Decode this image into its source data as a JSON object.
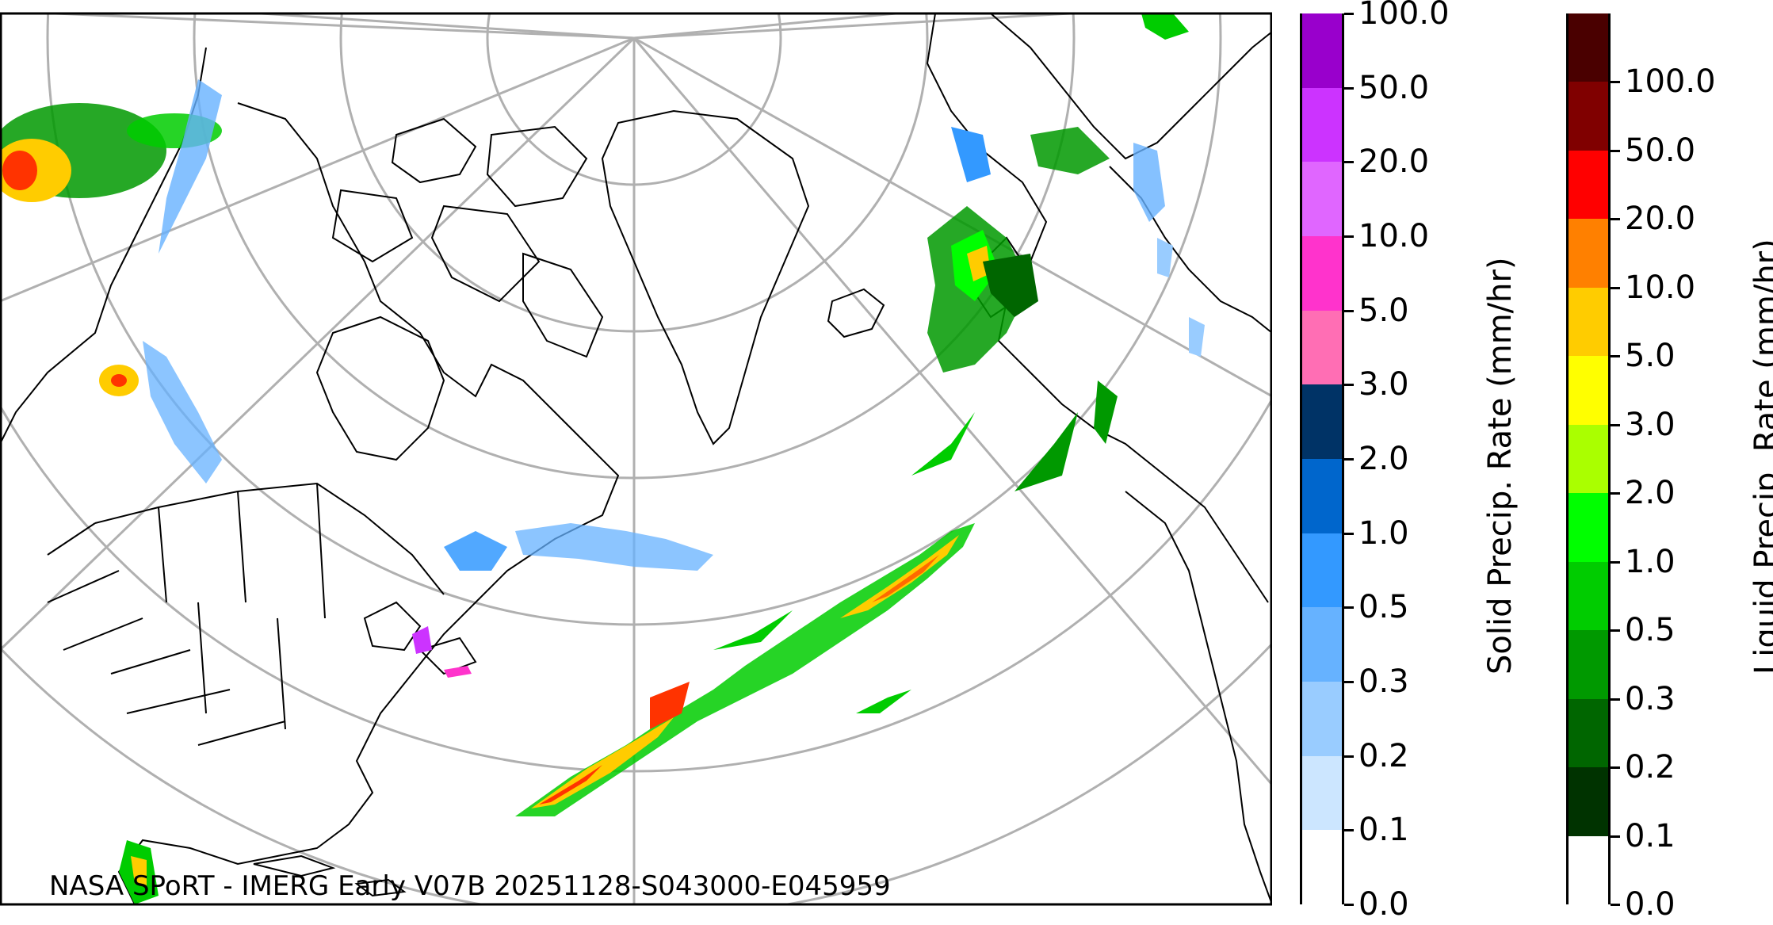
{
  "footer_text": "NASA SPoRT - IMERG Early V07B 20251128-S043000-E045959",
  "colorbars": {
    "solid": {
      "title": "Solid Precip. Rate (mm/hr)",
      "ticks": [
        "0.0",
        "0.1",
        "0.2",
        "0.3",
        "0.5",
        "1.0",
        "2.0",
        "3.0",
        "5.0",
        "10.0",
        "20.0",
        "50.0",
        "100.0"
      ],
      "colors": [
        "#ffffff",
        "#cce6ff",
        "#99ccff",
        "#66b2ff",
        "#3399ff",
        "#0066cc",
        "#003366",
        "#ff6eb4",
        "#ff33cc",
        "#e066ff",
        "#cc33ff",
        "#9900cc"
      ]
    },
    "liquid": {
      "title": "Liquid Precip. Rate (mm/hr)",
      "ticks": [
        "0.0",
        "0.1",
        "0.2",
        "0.3",
        "0.5",
        "1.0",
        "2.0",
        "3.0",
        "5.0",
        "10.0",
        "20.0",
        "50.0",
        "100.0"
      ],
      "colors": [
        "#ffffff",
        "#003300",
        "#006600",
        "#009900",
        "#00cc00",
        "#00ff00",
        "#aaff00",
        "#ffff00",
        "#ffcc00",
        "#ff8000",
        "#ff0000",
        "#800000",
        "#4a0000"
      ]
    }
  },
  "icons": [
    "precipitation-map",
    "snow-swath",
    "rain-band"
  ]
}
